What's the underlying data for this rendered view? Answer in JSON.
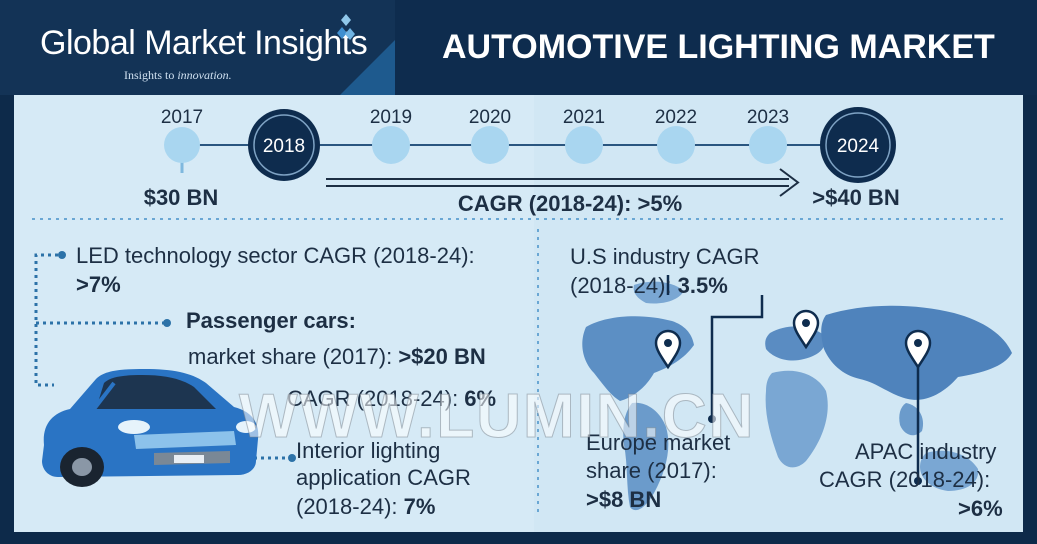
{
  "header": {
    "brand": "Global Market Insights",
    "tagline_a": "Insights to ",
    "tagline_b": "innovation.",
    "title": "AUTOMOTIVE LIGHTING MARKET"
  },
  "timeline": {
    "years": [
      "2017",
      "2018",
      "2019",
      "2020",
      "2021",
      "2022",
      "2023",
      "2024"
    ],
    "start_value": "$30 BN",
    "end_value": ">$40 BN",
    "cagr": "CAGR (2018-24): >5%"
  },
  "left": {
    "led_line1": "LED technology sector CAGR (2018-24):",
    "led_value": ">7%",
    "passenger_title": "Passenger cars:",
    "share_label": "market share (2017): ",
    "share_value": ">$20 BN",
    "cagr_label": "CAGR (2018-24): ",
    "cagr_value": "6%",
    "interior_line1": "Interior lighting",
    "interior_line2": "application CAGR",
    "interior_line3": "(2018-24): ",
    "interior_value": "7%"
  },
  "right": {
    "us_line1": "U.S industry CAGR",
    "us_line2": "(2018-24): ",
    "us_value": "3.5%",
    "eu_line1": "Europe market",
    "eu_line2": "share (2017):",
    "eu_value": ">$8 BN",
    "apac_line1": "APAC industry",
    "apac_line2": "CAGR (2018-24):",
    "apac_value": ">6%"
  },
  "watermark": "WWW.LUMIN.CN",
  "colors": {
    "navy": "#0e2c4e",
    "light_blue": "#a9d6f0",
    "map_blue": "#5c8fc4",
    "panel": "#d6eaf6"
  }
}
